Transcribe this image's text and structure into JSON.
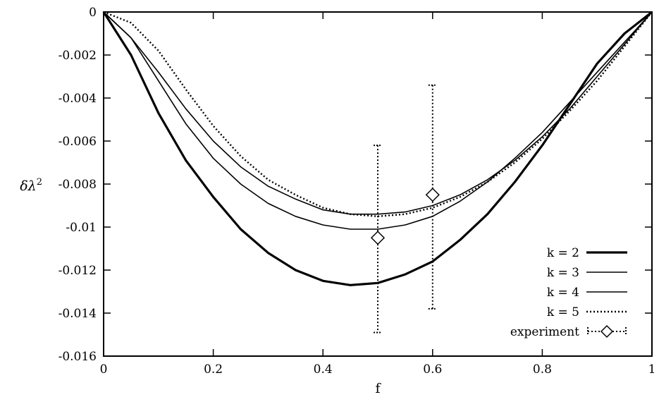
{
  "chart_data": {
    "type": "line",
    "xlabel": "f",
    "ylabel_main": "δλ",
    "ylabel_sup": "2",
    "xlim": [
      0,
      1
    ],
    "ylim": [
      -0.016,
      0
    ],
    "x_ticks": [
      0,
      0.2,
      0.4,
      0.6,
      0.8,
      1
    ],
    "x_tick_labels": [
      "0",
      "0.2",
      "0.4",
      "0.6",
      "0.8",
      "1"
    ],
    "y_ticks": [
      0,
      -0.002,
      -0.004,
      -0.006,
      -0.008,
      -0.01,
      -0.012,
      -0.014,
      -0.016
    ],
    "y_tick_labels": [
      "0",
      "-0.002",
      "-0.004",
      "-0.006",
      "-0.008",
      "-0.01",
      "-0.012",
      "-0.014",
      "-0.016"
    ],
    "legend_position": "bottom-right",
    "series": [
      {
        "name": "k = 2",
        "style": "thick",
        "x": [
          0,
          0.05,
          0.1,
          0.15,
          0.2,
          0.25,
          0.3,
          0.35,
          0.4,
          0.45,
          0.5,
          0.55,
          0.6,
          0.65,
          0.7,
          0.75,
          0.8,
          0.85,
          0.9,
          0.95,
          1
        ],
        "y": [
          0,
          -0.002,
          -0.0047,
          -0.0069,
          -0.0086,
          -0.0101,
          -0.0112,
          -0.012,
          -0.0125,
          -0.0127,
          -0.0126,
          -0.0122,
          -0.0116,
          -0.0106,
          -0.0094,
          -0.0079,
          -0.0062,
          -0.0043,
          -0.0024,
          -0.001,
          0
        ]
      },
      {
        "name": "k = 3",
        "style": "thin",
        "x": [
          0,
          0.05,
          0.1,
          0.15,
          0.2,
          0.25,
          0.3,
          0.35,
          0.4,
          0.45,
          0.5,
          0.55,
          0.6,
          0.65,
          0.7,
          0.75,
          0.8,
          0.85,
          0.9,
          0.95,
          1
        ],
        "y": [
          0,
          -0.0012,
          -0.0032,
          -0.0052,
          -0.0068,
          -0.008,
          -0.0089,
          -0.0095,
          -0.0099,
          -0.0101,
          -0.0101,
          -0.0099,
          -0.0095,
          -0.0088,
          -0.0079,
          -0.0068,
          -0.0056,
          -0.0042,
          -0.0028,
          -0.0014,
          0
        ]
      },
      {
        "name": "k = 4",
        "style": "thin",
        "x": [
          0,
          0.05,
          0.1,
          0.15,
          0.2,
          0.25,
          0.3,
          0.35,
          0.4,
          0.45,
          0.5,
          0.55,
          0.6,
          0.65,
          0.7,
          0.75,
          0.8,
          0.85,
          0.9,
          0.95,
          1
        ],
        "y": [
          0,
          -0.0012,
          -0.0028,
          -0.0045,
          -0.006,
          -0.0072,
          -0.0081,
          -0.0087,
          -0.0092,
          -0.0094,
          -0.0094,
          -0.0093,
          -0.009,
          -0.0085,
          -0.0078,
          -0.0069,
          -0.0058,
          -0.0045,
          -0.003,
          -0.0015,
          0
        ]
      },
      {
        "name": "k = 5",
        "style": "dotted",
        "x": [
          0,
          0.05,
          0.1,
          0.15,
          0.2,
          0.25,
          0.3,
          0.35,
          0.4,
          0.45,
          0.5,
          0.55,
          0.6,
          0.65,
          0.7,
          0.75,
          0.8,
          0.85,
          0.9,
          0.95,
          1
        ],
        "y": [
          0,
          -0.0005,
          -0.0018,
          -0.0036,
          -0.0053,
          -0.0067,
          -0.0078,
          -0.0085,
          -0.0091,
          -0.0094,
          -0.0095,
          -0.0094,
          -0.0091,
          -0.0086,
          -0.0079,
          -0.007,
          -0.0059,
          -0.0046,
          -0.0032,
          -0.0016,
          0
        ]
      }
    ],
    "experiment": {
      "name": "experiment",
      "points": [
        {
          "x": 0.5,
          "y": -0.0105,
          "ylow": -0.0149,
          "yhigh": -0.0062
        },
        {
          "x": 0.6,
          "y": -0.0085,
          "ylow": -0.0138,
          "yhigh": -0.0034
        }
      ]
    }
  }
}
